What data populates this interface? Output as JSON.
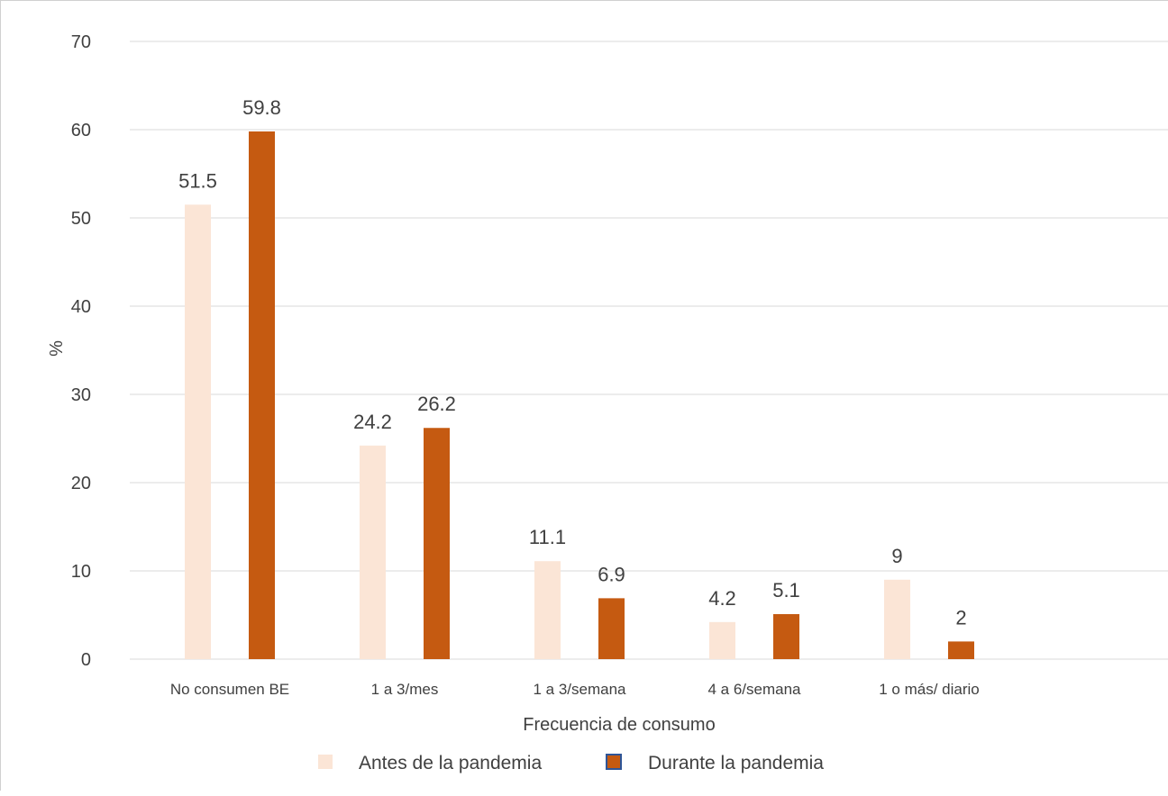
{
  "chart_data": {
    "type": "bar",
    "categories": [
      "No consumen BE",
      "1 a 3/mes",
      "1 a 3/semana",
      "4 a 6/semana",
      "1 o más/ diario"
    ],
    "series": [
      {
        "name": "Antes de la pandemia",
        "values": [
          51.5,
          24.2,
          11.1,
          4.2,
          9
        ],
        "labels": [
          "51.5",
          "24.2",
          "11.1",
          "4.2",
          "9"
        ],
        "color": "#FBE5D6"
      },
      {
        "name": "Durante la pandemia",
        "values": [
          59.8,
          26.2,
          6.9,
          5.1,
          2
        ],
        "labels": [
          "59.8",
          "26.2",
          "6.9",
          "5.1",
          "2"
        ],
        "color": "#C55A11"
      }
    ],
    "title": "",
    "xlabel": "Frecuencia de consumo",
    "ylabel": "%",
    "ylim": [
      0,
      70
    ],
    "yticks": [
      "0",
      "10",
      "20",
      "30",
      "40",
      "50",
      "60",
      "70"
    ],
    "grid": true,
    "legend_position": "bottom",
    "colors": {
      "gridline": "#D9D9D9",
      "text": "#404040",
      "legend_border_durante": "#2F5597"
    }
  }
}
